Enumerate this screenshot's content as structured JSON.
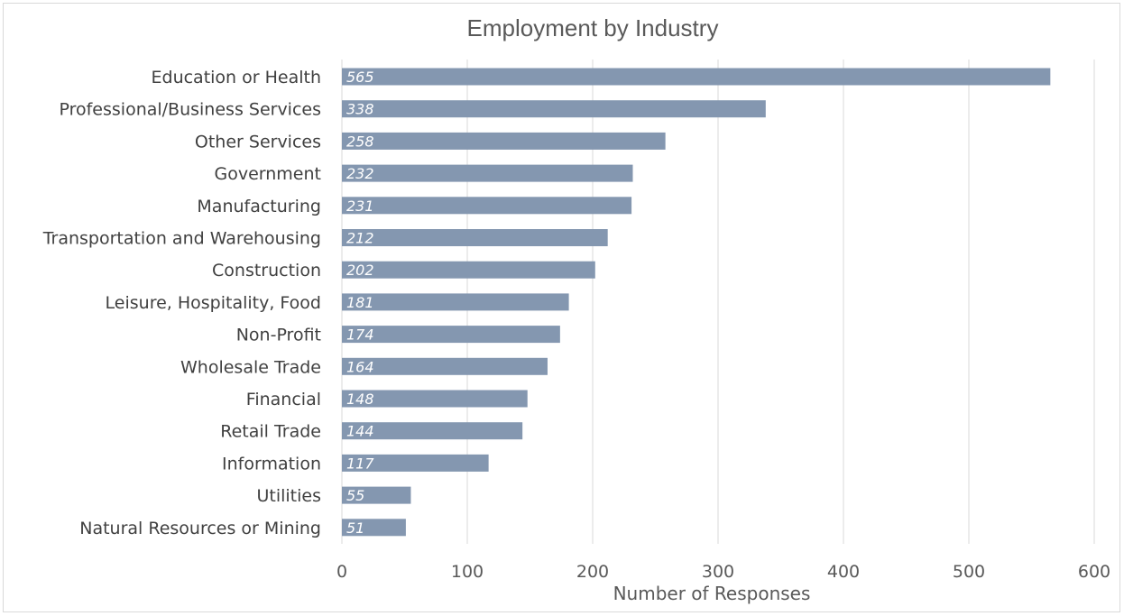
{
  "chart_data": {
    "type": "bar",
    "orientation": "horizontal",
    "title": "Employment by Industry",
    "xlabel": "Number of Responses",
    "ylabel": "",
    "xlim": [
      0,
      600
    ],
    "xticks": [
      0,
      100,
      200,
      300,
      400,
      500,
      600
    ],
    "grid": true,
    "bar_color": "#8497b0",
    "data_label_color": "#ffffff",
    "categories": [
      "Education or Health",
      "Professional/Business Services",
      "Other Services",
      "Government",
      "Manufacturing",
      "Transportation and Warehousing",
      "Construction",
      "Leisure, Hospitality, Food",
      "Non-Profit",
      "Wholesale Trade",
      "Financial",
      "Retail Trade",
      "Information",
      "Utilities",
      "Natural Resources or Mining"
    ],
    "values": [
      565,
      338,
      258,
      232,
      231,
      212,
      202,
      181,
      174,
      164,
      148,
      144,
      117,
      55,
      51
    ]
  }
}
